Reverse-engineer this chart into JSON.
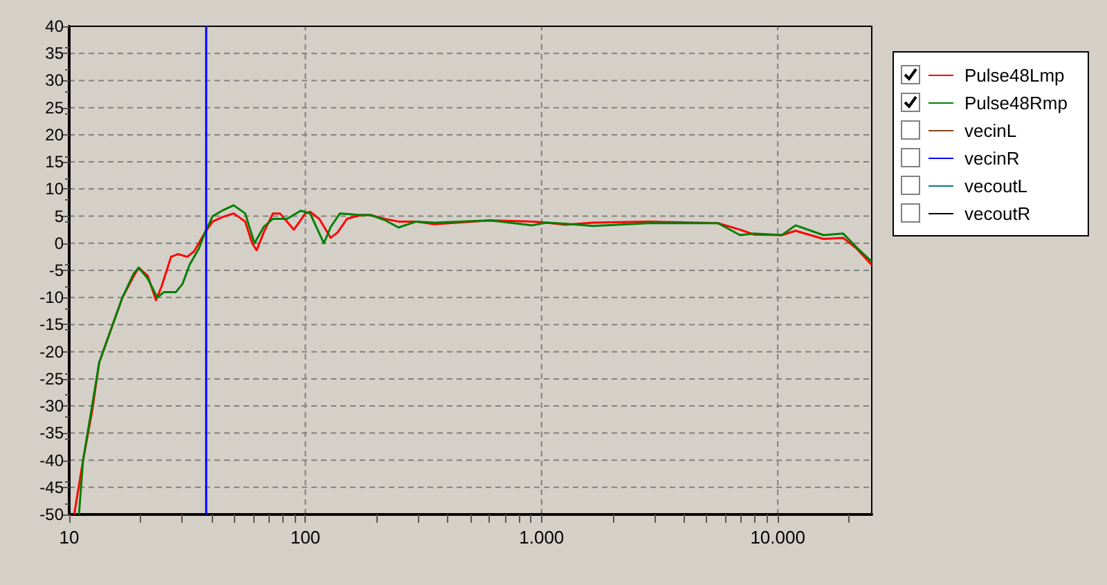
{
  "chart_data": {
    "type": "line",
    "xlim": [
      10,
      25000
    ],
    "ylim": [
      -50,
      40
    ],
    "log": "x",
    "grid": true,
    "legend": "top right",
    "line_style": "solid",
    "marker": "none",
    "xticks": [
      {
        "value": 10,
        "label": "10"
      },
      {
        "value": 20,
        "label": null
      },
      {
        "value": 30,
        "label": null
      },
      {
        "value": 40,
        "label": null
      },
      {
        "value": 50,
        "label": null
      },
      {
        "value": 60,
        "label": null
      },
      {
        "value": 70,
        "label": null
      },
      {
        "value": 80,
        "label": null
      },
      {
        "value": 90,
        "label": null
      },
      {
        "value": 100,
        "label": "100"
      },
      {
        "value": 200,
        "label": null
      },
      {
        "value": 300,
        "label": null
      },
      {
        "value": 400,
        "label": null
      },
      {
        "value": 500,
        "label": null
      },
      {
        "value": 600,
        "label": null
      },
      {
        "value": 700,
        "label": null
      },
      {
        "value": 800,
        "label": null
      },
      {
        "value": 900,
        "label": null
      },
      {
        "value": 1000,
        "label": "1.000"
      },
      {
        "value": 2000,
        "label": null
      },
      {
        "value": 3000,
        "label": null
      },
      {
        "value": 4000,
        "label": null
      },
      {
        "value": 5000,
        "label": null
      },
      {
        "value": 6000,
        "label": null
      },
      {
        "value": 7000,
        "label": null
      },
      {
        "value": 8000,
        "label": null
      },
      {
        "value": 9000,
        "label": null
      },
      {
        "value": 10000,
        "label": "10.000"
      },
      {
        "value": 20000,
        "label": null
      }
    ],
    "yticks": [
      -50,
      -45,
      -40,
      -35,
      -30,
      -25,
      -20,
      -15,
      -10,
      -5,
      0,
      5,
      10,
      15,
      20,
      25,
      30,
      35,
      40
    ],
    "ref_lines": [
      {
        "axis": "x",
        "value": 38,
        "color": "#0000ff"
      }
    ],
    "series": [
      {
        "name": "Pulse48Lmp",
        "color": "#ff0000",
        "x": [
          10.5,
          11.45,
          12.5,
          13.4,
          15,
          16.8,
          18.8,
          19.7,
          21.5,
          23.3,
          24.6,
          27,
          28.9,
          31.6,
          33.8,
          37.6,
          40.5,
          44.4,
          49.7,
          55.6,
          59.5,
          62.2,
          66.6,
          72.9,
          78,
          83.6,
          89.4,
          100,
          104.7,
          114.5,
          128,
          137,
          150,
          172,
          189,
          216,
          248,
          295,
          352,
          605,
          912,
          1047,
          1260,
          1652,
          2840,
          5580,
          6920,
          7940,
          10400,
          11900,
          15600,
          18900,
          21600,
          25000
        ],
        "values": [
          -50,
          -40,
          -31,
          -22,
          -16,
          -10,
          -6,
          -4.5,
          -6,
          -10.5,
          -8,
          -2.5,
          -2,
          -2.5,
          -1.5,
          2,
          4,
          4.8,
          5.5,
          4,
          0,
          -1.3,
          2,
          5.5,
          5.5,
          4,
          2.5,
          5.5,
          5.8,
          4.5,
          1,
          2,
          4.5,
          5.2,
          5.2,
          4.5,
          4,
          4,
          3.5,
          4.2,
          4,
          3.8,
          3.4,
          3.8,
          4,
          3.7,
          2.5,
          1.6,
          1.5,
          2.3,
          0.8,
          1,
          -1,
          -4
        ]
      },
      {
        "name": "Pulse48Rmp",
        "color": "#008000",
        "x": [
          11,
          11.45,
          12.5,
          13.4,
          15,
          16.8,
          18.8,
          19.7,
          21.5,
          23.6,
          25.2,
          28.3,
          30.2,
          32.3,
          35.4,
          37.6,
          40.5,
          44.4,
          49.7,
          55.6,
          60.9,
          66.6,
          72.9,
          83.6,
          95.5,
          104.7,
          119.8,
          128,
          140,
          172,
          189,
          216,
          248,
          295,
          352,
          605,
          912,
          1047,
          1260,
          1652,
          2840,
          5580,
          6920,
          7940,
          10400,
          11900,
          15600,
          18900,
          21600,
          25000
        ],
        "values": [
          -50,
          -40,
          -30,
          -22,
          -16,
          -10,
          -5.5,
          -4.5,
          -6.5,
          -10,
          -9,
          -9,
          -7.5,
          -4,
          -1,
          2,
          5,
          6,
          7,
          5.5,
          0,
          3,
          4.5,
          4.5,
          6,
          5.5,
          0,
          3,
          5.5,
          5.2,
          5.2,
          4.3,
          2.9,
          4,
          3.8,
          4.2,
          3.3,
          3.8,
          3.6,
          3.2,
          3.7,
          3.7,
          1.5,
          1.8,
          1.5,
          3.3,
          1.5,
          1.8,
          -0.8,
          -3.4
        ]
      },
      {
        "name": "vecinL",
        "color": "#8b4513"
      },
      {
        "name": "vecinR",
        "color": "#0000ff"
      },
      {
        "name": "vecoutL",
        "color": "#008080"
      },
      {
        "name": "vecoutR",
        "color": "#000000"
      }
    ]
  }
}
